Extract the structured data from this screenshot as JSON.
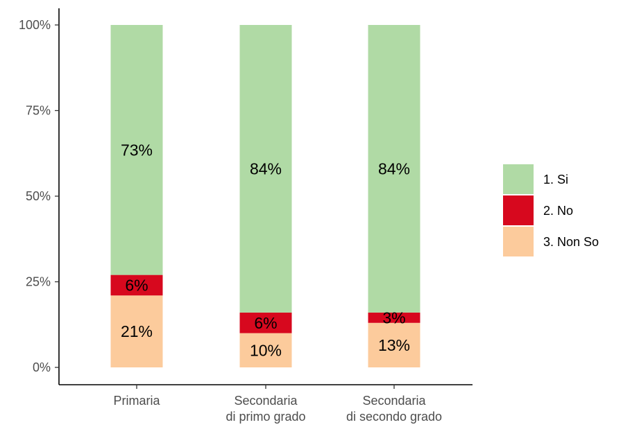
{
  "chart_data": {
    "type": "bar",
    "stacked": true,
    "percent": true,
    "categories": [
      [
        "Primaria"
      ],
      [
        "Secondaria",
        "di primo grado"
      ],
      [
        "Secondaria",
        "di secondo grado"
      ]
    ],
    "series": [
      {
        "name": "3. Non So",
        "color": "#fccb9c",
        "values": [
          21,
          10,
          13
        ],
        "labels": [
          "21%",
          "10%",
          "13%"
        ]
      },
      {
        "name": "2. No",
        "color": "#d7081e",
        "values": [
          6,
          6,
          3
        ],
        "labels": [
          "6%",
          "6%",
          "3%"
        ]
      },
      {
        "name": "1. Si",
        "color": "#b0daa5",
        "values": [
          73,
          84,
          84
        ],
        "labels": [
          "73%",
          "84%",
          "84%"
        ]
      }
    ],
    "legend_order": [
      "1. Si",
      "2. No",
      "3. Non So"
    ],
    "legend_position": "right",
    "yticks": [
      0,
      25,
      50,
      75,
      100
    ],
    "ytick_labels": [
      "0%",
      "25%",
      "50%",
      "75%",
      "100%"
    ],
    "ylim": [
      0,
      100
    ],
    "grid": false,
    "title": "",
    "xlabel": "",
    "ylabel": ""
  }
}
